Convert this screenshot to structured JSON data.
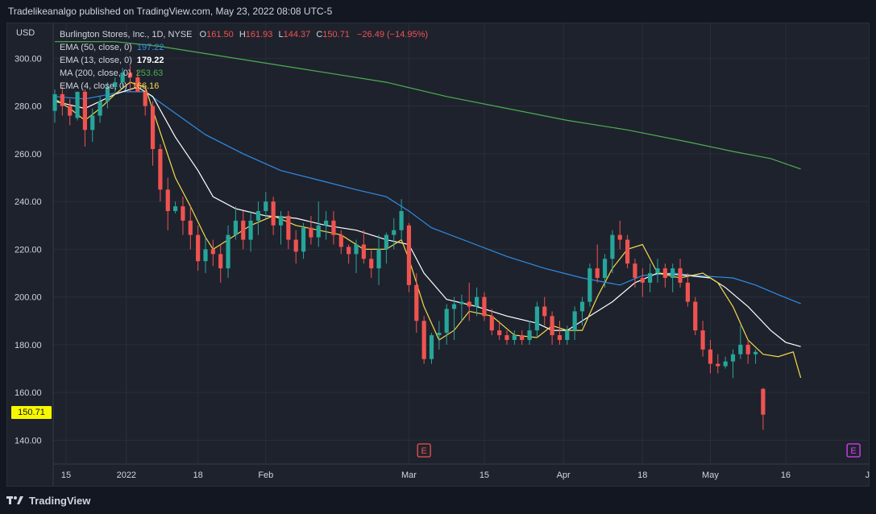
{
  "header": {
    "published_text": "Tradelikeanalgo published on TradingView.com, May 23, 2022 08:08 UTC-5"
  },
  "axis": {
    "currency": "USD",
    "last_price_label": "150.71",
    "last_price_color": "#f7f700"
  },
  "legend": {
    "title": "Burlington Stores, Inc., 1D, NYSE",
    "ohlc": {
      "o_label": "O",
      "o_value": "161.50",
      "h_label": "H",
      "h_value": "161.93",
      "l_label": "L",
      "l_value": "144.37",
      "c_label": "C",
      "c_value": "150.71",
      "change": "−26.49 (−14.95%)"
    },
    "indicators": [
      {
        "label": "EMA (50, close, 0)",
        "value": "197.22",
        "color": "#2f8de4"
      },
      {
        "label": "EMA (13, close, 0)",
        "value": "179.22",
        "color": "#ffffff"
      },
      {
        "label": "MA (200, close, 0)",
        "value": "253.63",
        "color": "#4caf50"
      },
      {
        "label": "EMA (4, close, 0)",
        "value": "166.16",
        "color": "#f5d94a"
      }
    ]
  },
  "footer": {
    "brand": "TradingView"
  },
  "colors": {
    "up": "#26a69a",
    "down": "#ef5350",
    "grid": "#2a2e39",
    "earnings_icon": "#ef5350",
    "earnings_icon_future": "#e040fb"
  },
  "chart_data": {
    "type": "candlestick",
    "ylim": [
      130,
      315
    ],
    "y_ticks": [
      140,
      160,
      180,
      200,
      220,
      240,
      260,
      280,
      300
    ],
    "y_tick_labels": [
      "140.00",
      "160.00",
      "180.00",
      "200.00",
      "220.00",
      "240.00",
      "260.00",
      "280.00",
      "300.00"
    ],
    "x_tick_labels": [
      {
        "label": "15",
        "index": 1.5
      },
      {
        "label": "2022",
        "index": 9.5
      },
      {
        "label": "18",
        "index": 19
      },
      {
        "label": "Feb",
        "index": 28
      },
      {
        "label": "Mar",
        "index": 47
      },
      {
        "label": "15",
        "index": 57
      },
      {
        "label": "Apr",
        "index": 67.5
      },
      {
        "label": "18",
        "index": 78
      },
      {
        "label": "May",
        "index": 87
      },
      {
        "label": "16",
        "index": 97
      },
      {
        "label": "Jun",
        "index": 108.5
      }
    ],
    "candles": [
      [
        278,
        287,
        273,
        285
      ],
      [
        285,
        288,
        276,
        280
      ],
      [
        280,
        283,
        272,
        276
      ],
      [
        275,
        286,
        274,
        286
      ],
      [
        286,
        287,
        263,
        270
      ],
      [
        270,
        279,
        265,
        276
      ],
      [
        276,
        284,
        273,
        282
      ],
      [
        282,
        290,
        279,
        288
      ],
      [
        288,
        292,
        286,
        290
      ],
      [
        290,
        296,
        288,
        294
      ],
      [
        294,
        297,
        286,
        292
      ],
      [
        292,
        295,
        286,
        286
      ],
      [
        286,
        288,
        276,
        280
      ],
      [
        280,
        282,
        255,
        262
      ],
      [
        262,
        264,
        240,
        245
      ],
      [
        245,
        250,
        228,
        236
      ],
      [
        236,
        240,
        235,
        238
      ],
      [
        238,
        242,
        226,
        232
      ],
      [
        232,
        238,
        220,
        226
      ],
      [
        226,
        230,
        211,
        215
      ],
      [
        215,
        225,
        210,
        220
      ],
      [
        220,
        224,
        213,
        218
      ],
      [
        218,
        222,
        206,
        212
      ],
      [
        212,
        230,
        208,
        226
      ],
      [
        226,
        238,
        224,
        232
      ],
      [
        232,
        236,
        220,
        224
      ],
      [
        224,
        236,
        219,
        232
      ],
      [
        232,
        240,
        226,
        236
      ],
      [
        236,
        244,
        233,
        240
      ],
      [
        240,
        242,
        226,
        230
      ],
      [
        230,
        236,
        222,
        234
      ],
      [
        234,
        236,
        220,
        224
      ],
      [
        224,
        228,
        214,
        219
      ],
      [
        219,
        231,
        216,
        229
      ],
      [
        229,
        234,
        222,
        225
      ],
      [
        225,
        240,
        221,
        230
      ],
      [
        230,
        236,
        224,
        232
      ],
      [
        232,
        236,
        222,
        226
      ],
      [
        226,
        228,
        218,
        221
      ],
      [
        221,
        222,
        214,
        218
      ],
      [
        218,
        224,
        210,
        222
      ],
      [
        222,
        228,
        214,
        216
      ],
      [
        216,
        220,
        208,
        212
      ],
      [
        212,
        226,
        205,
        220
      ],
      [
        220,
        227,
        214,
        226
      ],
      [
        226,
        233,
        220,
        228
      ],
      [
        228,
        241,
        224,
        236
      ],
      [
        230,
        231,
        202,
        205
      ],
      [
        205,
        210,
        185,
        190
      ],
      [
        190,
        192,
        172,
        174
      ],
      [
        174,
        185,
        172,
        184
      ],
      [
        184,
        190,
        178,
        185
      ],
      [
        185,
        197,
        180,
        195
      ],
      [
        195,
        200,
        182,
        197
      ],
      [
        197,
        201,
        190,
        198
      ],
      [
        198,
        206,
        190,
        196
      ],
      [
        196,
        204,
        192,
        200
      ],
      [
        200,
        202,
        190,
        192
      ],
      [
        192,
        195,
        184,
        186
      ],
      [
        186,
        190,
        182,
        184
      ],
      [
        184,
        186,
        180,
        182
      ],
      [
        182,
        186,
        180,
        184
      ],
      [
        184,
        186,
        180,
        182
      ],
      [
        182,
        190,
        180,
        186
      ],
      [
        186,
        198,
        183,
        196
      ],
      [
        196,
        200,
        188,
        192
      ],
      [
        192,
        194,
        180,
        184
      ],
      [
        184,
        190,
        180,
        182
      ],
      [
        182,
        188,
        180,
        186
      ],
      [
        186,
        196,
        182,
        194
      ],
      [
        194,
        200,
        188,
        198
      ],
      [
        198,
        214,
        196,
        212
      ],
      [
        212,
        222,
        206,
        208
      ],
      [
        208,
        218,
        204,
        216
      ],
      [
        216,
        228,
        210,
        226
      ],
      [
        226,
        232,
        220,
        224
      ],
      [
        224,
        226,
        212,
        214
      ],
      [
        214,
        216,
        204,
        208
      ],
      [
        208,
        212,
        200,
        206
      ],
      [
        206,
        214,
        202,
        210
      ],
      [
        210,
        216,
        206,
        212
      ],
      [
        212,
        214,
        204,
        208
      ],
      [
        208,
        214,
        202,
        212
      ],
      [
        212,
        216,
        204,
        206
      ],
      [
        206,
        210,
        196,
        198
      ],
      [
        198,
        200,
        184,
        186
      ],
      [
        186,
        190,
        175,
        178
      ],
      [
        178,
        182,
        168,
        172
      ],
      [
        172,
        176,
        168,
        171
      ],
      [
        171,
        175,
        170,
        173
      ],
      [
        173,
        178,
        166,
        176
      ],
      [
        176,
        188,
        174,
        180
      ],
      [
        180,
        182,
        172,
        176
      ],
      [
        176,
        178,
        172,
        177
      ],
      [
        161.5,
        161.93,
        144.37,
        150.71
      ]
    ],
    "series": [
      {
        "name": "EMA (50, close, 0)",
        "color": "#2f8de4",
        "points": [
          [
            0,
            284
          ],
          [
            4,
            283
          ],
          [
            9,
            286
          ],
          [
            12,
            286
          ],
          [
            16,
            277
          ],
          [
            20,
            268
          ],
          [
            25,
            260
          ],
          [
            30,
            253
          ],
          [
            35,
            249
          ],
          [
            40,
            245
          ],
          [
            44,
            242
          ],
          [
            47,
            236
          ],
          [
            50,
            229
          ],
          [
            55,
            223
          ],
          [
            60,
            217
          ],
          [
            65,
            212
          ],
          [
            70,
            208
          ],
          [
            75,
            205
          ],
          [
            78,
            209
          ],
          [
            82,
            210
          ],
          [
            85,
            209
          ],
          [
            90,
            208
          ],
          [
            93,
            205
          ],
          [
            96,
            201
          ],
          [
            99,
            197.22
          ]
        ]
      },
      {
        "name": "EMA (13, close, 0)",
        "color": "#ffffff",
        "points": [
          [
            0,
            282
          ],
          [
            4,
            279
          ],
          [
            8,
            285
          ],
          [
            11,
            288
          ],
          [
            13,
            284
          ],
          [
            16,
            267
          ],
          [
            19,
            253
          ],
          [
            21,
            242
          ],
          [
            24,
            237
          ],
          [
            28,
            234
          ],
          [
            32,
            233
          ],
          [
            36,
            230
          ],
          [
            40,
            228
          ],
          [
            44,
            224
          ],
          [
            47,
            222
          ],
          [
            49,
            210
          ],
          [
            52,
            199
          ],
          [
            56,
            196
          ],
          [
            60,
            192
          ],
          [
            64,
            189
          ],
          [
            66,
            186
          ],
          [
            68,
            186
          ],
          [
            71,
            192
          ],
          [
            74,
            198
          ],
          [
            77,
            206
          ],
          [
            80,
            210
          ],
          [
            84,
            209
          ],
          [
            87,
            208
          ],
          [
            89,
            204
          ],
          [
            92,
            196
          ],
          [
            95,
            186
          ],
          [
            97,
            181
          ],
          [
            99,
            179.22
          ]
        ]
      },
      {
        "name": "MA (200, close, 0)",
        "color": "#4caf50",
        "points": [
          [
            0,
            307
          ],
          [
            8,
            307
          ],
          [
            14,
            305
          ],
          [
            20,
            302
          ],
          [
            28,
            298
          ],
          [
            36,
            294
          ],
          [
            44,
            290
          ],
          [
            52,
            284
          ],
          [
            60,
            279
          ],
          [
            68,
            274
          ],
          [
            76,
            270
          ],
          [
            84,
            265
          ],
          [
            90,
            261
          ],
          [
            95,
            258
          ],
          [
            99,
            253.63
          ]
        ]
      },
      {
        "name": "EMA (4, close, 0)",
        "color": "#f5d94a",
        "points": [
          [
            0,
            283
          ],
          [
            2,
            279
          ],
          [
            4,
            274
          ],
          [
            6,
            279
          ],
          [
            8,
            285
          ],
          [
            10,
            290
          ],
          [
            12,
            288
          ],
          [
            14,
            269
          ],
          [
            16,
            250
          ],
          [
            18,
            238
          ],
          [
            20,
            225
          ],
          [
            21,
            220
          ],
          [
            23,
            224
          ],
          [
            26,
            230
          ],
          [
            29,
            234
          ],
          [
            32,
            230
          ],
          [
            35,
            228
          ],
          [
            38,
            226
          ],
          [
            41,
            220
          ],
          [
            44,
            220
          ],
          [
            46,
            224
          ],
          [
            47,
            216
          ],
          [
            49,
            196
          ],
          [
            51,
            182
          ],
          [
            53,
            186
          ],
          [
            55,
            194
          ],
          [
            58,
            192
          ],
          [
            61,
            184
          ],
          [
            64,
            183
          ],
          [
            66,
            188
          ],
          [
            68,
            186
          ],
          [
            70,
            186
          ],
          [
            72,
            200
          ],
          [
            74,
            212
          ],
          [
            76,
            220
          ],
          [
            78,
            222
          ],
          [
            80,
            210
          ],
          [
            83,
            208
          ],
          [
            86,
            210
          ],
          [
            88,
            206
          ],
          [
            90,
            196
          ],
          [
            92,
            182
          ],
          [
            94,
            176
          ],
          [
            96,
            175
          ],
          [
            98,
            177
          ],
          [
            99,
            166.16
          ]
        ]
      }
    ],
    "earnings_markers": [
      {
        "label": "E",
        "index": 49,
        "future": false
      },
      {
        "label": "E",
        "index": 106,
        "future": true
      }
    ]
  }
}
